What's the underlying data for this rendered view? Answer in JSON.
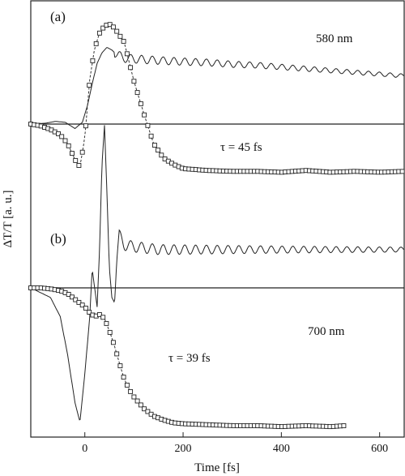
{
  "chart_data": [
    {
      "panel_label": "(a)",
      "type": "line",
      "x_unit_note": "fs",
      "xlim": [
        -110,
        650
      ],
      "series": [
        {
          "name": "",
          "style": "solid",
          "x": [
            -110,
            -80,
            -60,
            -40,
            -20,
            -5,
            5,
            15,
            25,
            35,
            45,
            55,
            65,
            80,
            100,
            130,
            160,
            200,
            250,
            300,
            350,
            400,
            450,
            500,
            550,
            600,
            650
          ],
          "y": [
            0.0,
            0.01,
            0.03,
            0.02,
            -0.05,
            0.02,
            0.2,
            0.45,
            0.68,
            0.8,
            0.86,
            0.83,
            0.78,
            0.74,
            0.73,
            0.72,
            0.71,
            0.7,
            0.69,
            0.67,
            0.66,
            0.64,
            0.62,
            0.6,
            0.58,
            0.56,
            0.54
          ],
          "oscillation_amplitude": 0.05,
          "oscillation_period_fs": 22
        },
        {
          "name": "",
          "style": "markers-square",
          "x": [
            -110,
            -90,
            -70,
            -50,
            -35,
            -20,
            -10,
            0,
            10,
            20,
            30,
            40,
            50,
            60,
            70,
            80,
            90,
            100,
            110,
            120,
            140,
            160,
            180,
            200,
            250,
            300,
            350,
            400,
            450,
            500,
            550,
            600,
            650
          ],
          "y": [
            0.0,
            -0.02,
            -0.06,
            -0.12,
            -0.22,
            -0.4,
            -0.48,
            -0.15,
            0.5,
            0.85,
            1.02,
            1.1,
            1.12,
            1.08,
            1.0,
            0.92,
            0.7,
            0.48,
            0.3,
            0.12,
            -0.22,
            -0.38,
            -0.45,
            -0.5,
            -0.52,
            -0.53,
            -0.53,
            -0.54,
            -0.52,
            -0.54,
            -0.53,
            -0.54,
            -0.53
          ],
          "fit": {
            "style": "dashed",
            "label": "τ = 45 fs",
            "tau_fs": 45
          }
        }
      ],
      "annotation": "580 nm"
    },
    {
      "panel_label": "(b)",
      "type": "line",
      "xlim": [
        -110,
        650
      ],
      "series": [
        {
          "name": "",
          "style": "solid",
          "x": [
            -110,
            -90,
            -70,
            -50,
            -35,
            -20,
            -10,
            0,
            10,
            15,
            20,
            25,
            30,
            35,
            40,
            45,
            50,
            55,
            60,
            65,
            70,
            80,
            100,
            150,
            200,
            300,
            400,
            500,
            650
          ],
          "y": [
            0.0,
            -0.05,
            -0.1,
            -0.3,
            -0.7,
            -1.2,
            -1.4,
            -0.9,
            -0.3,
            0.2,
            0.0,
            -0.2,
            0.4,
            1.3,
            1.7,
            1.0,
            0.2,
            -0.1,
            -0.15,
            0.3,
            0.55,
            0.45,
            0.43,
            0.4,
            0.4,
            0.4,
            0.4,
            0.4,
            0.4
          ],
          "oscillation_amplitude": 0.06,
          "oscillation_period_fs": 22
        },
        {
          "name": "",
          "style": "markers-square",
          "x": [
            -110,
            -90,
            -70,
            -50,
            -35,
            -20,
            -10,
            0,
            10,
            20,
            30,
            40,
            50,
            60,
            70,
            80,
            90,
            100,
            120,
            140,
            160,
            180,
            200,
            250,
            300,
            350,
            400,
            450,
            500,
            530
          ],
          "y": [
            0.0,
            0.0,
            -0.01,
            -0.03,
            -0.06,
            -0.12,
            -0.16,
            -0.2,
            -0.26,
            -0.3,
            -0.28,
            -0.32,
            -0.45,
            -0.6,
            -0.78,
            -0.95,
            -1.06,
            -1.14,
            -1.26,
            -1.34,
            -1.38,
            -1.41,
            -1.42,
            -1.43,
            -1.44,
            -1.44,
            -1.45,
            -1.44,
            -1.45,
            -1.44
          ],
          "fit": {
            "style": "dashed",
            "label": "τ = 39 fs",
            "tau_fs": 39
          }
        }
      ],
      "annotation": "700 nm"
    }
  ],
  "axes": {
    "xlabel": "Time [fs]",
    "ylabel": "ΔT/T [a. u.]",
    "xticks": [
      0,
      200,
      400,
      600
    ],
    "xtick_labels": [
      "0",
      "200",
      "400",
      "600"
    ]
  }
}
